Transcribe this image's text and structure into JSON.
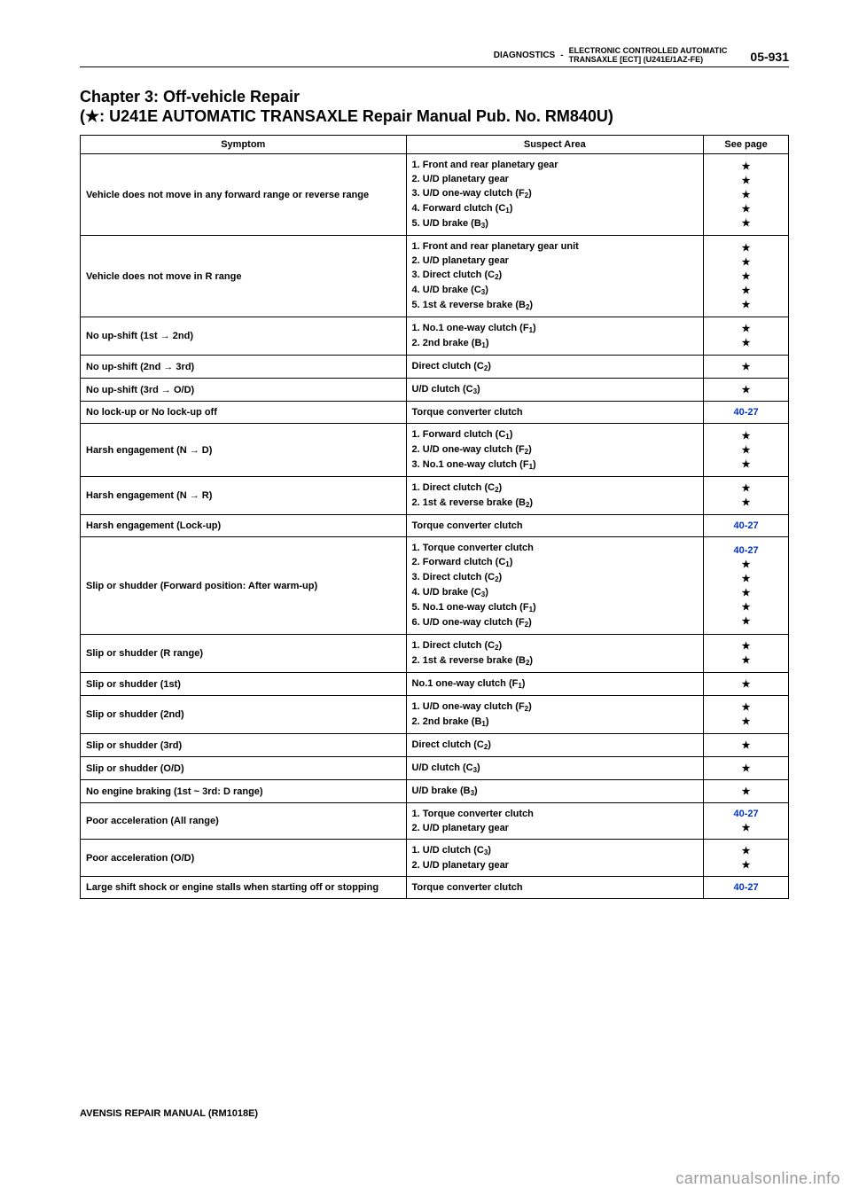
{
  "page_number": "05-931",
  "header_left": "DIAGNOSTICS",
  "header_sep": "-",
  "header_right_line1": "ELECTRONIC CONTROLLED AUTOMATIC",
  "header_right_line2": "TRANSAXLE [ECT] (U241E/1AZ-FE)",
  "chapter_line1": "Chapter 3: Off-vehicle Repair",
  "chapter_line2": "(★: U241E AUTOMATIC TRANSAXLE Repair Manual Pub. No. RM840U)",
  "columns": {
    "symptom": "Symptom",
    "suspect": "Suspect Area",
    "page": "See page"
  },
  "link_color": "#0033cc",
  "star_char": "★",
  "page_ref": "40-27",
  "rows": [
    {
      "symptom": "Vehicle does not move in any forward range or reverse range",
      "suspect": [
        "1.  Front and rear planetary gear",
        "2.  U/D planetary gear",
        "3.  U/D one-way clutch (F₂)",
        "4.  Forward clutch (C₁)",
        "5.  U/D brake (B₃)"
      ],
      "pages": [
        "star",
        "star",
        "star",
        "star",
        "star"
      ]
    },
    {
      "symptom": "Vehicle does not move in R range",
      "suspect": [
        "1.  Front and rear planetary gear unit",
        "2.  U/D planetary gear",
        "3.  Direct clutch (C₂)",
        "4.  U/D brake (C₃)",
        "5.  1st & reverse brake (B₂)"
      ],
      "pages": [
        "star",
        "star",
        "star",
        "star",
        "star"
      ]
    },
    {
      "symptom": "No up-shift (1st → 2nd)",
      "suspect": [
        "1.  No.1 one-way clutch (F₁)",
        "2.  2nd brake (B₁)"
      ],
      "pages": [
        "star",
        "star"
      ]
    },
    {
      "symptom": "No up-shift (2nd → 3rd)",
      "suspect": [
        "Direct clutch (C₂)"
      ],
      "pages": [
        "star"
      ]
    },
    {
      "symptom": "No up-shift (3rd → O/D)",
      "suspect": [
        "U/D clutch (C₃)"
      ],
      "pages": [
        "star"
      ]
    },
    {
      "symptom": "No lock-up or No lock-up off",
      "suspect": [
        "Torque converter clutch"
      ],
      "pages": [
        "link"
      ]
    },
    {
      "symptom": "Harsh engagement (N → D)",
      "suspect": [
        "1.  Forward clutch (C₁)",
        "2.  U/D one-way clutch (F₂)",
        "3.  No.1 one-way clutch (F₁)"
      ],
      "pages": [
        "star",
        "star",
        "star"
      ]
    },
    {
      "symptom": "Harsh engagement (N → R)",
      "suspect": [
        "1.  Direct  clutch (C₂)",
        "2.  1st & reverse brake (B₂)"
      ],
      "pages": [
        "star",
        "star"
      ]
    },
    {
      "symptom": "Harsh engagement (Lock-up)",
      "suspect": [
        "Torque converter clutch"
      ],
      "pages": [
        "link"
      ]
    },
    {
      "symptom": "Slip or shudder (Forward position: After warm-up)",
      "suspect": [
        "1.  Torque converter clutch",
        "2.  Forward clutch (C₁)",
        "3.  Direct clutch (C₂)",
        "4.  U/D brake (C₃)",
        "5.  No.1 one-way clutch (F₁)",
        "6.  U/D one-way clutch (F₂)"
      ],
      "pages": [
        "link",
        "star",
        "star",
        "star",
        "star",
        "star"
      ]
    },
    {
      "symptom": "Slip or shudder (R range)",
      "suspect": [
        "1.  Direct clutch (C₂)",
        "2.  1st & reverse brake (B₂)"
      ],
      "pages": [
        "star",
        "star"
      ]
    },
    {
      "symptom": "Slip or shudder (1st)",
      "suspect": [
        "No.1 one-way clutch (F₁)"
      ],
      "pages": [
        "star"
      ]
    },
    {
      "symptom": "Slip or shudder (2nd)",
      "suspect": [
        "1.  U/D one-way clutch (F₂)",
        "2.  2nd brake (B₁)"
      ],
      "pages": [
        "star",
        "star"
      ]
    },
    {
      "symptom": "Slip or shudder (3rd)",
      "suspect": [
        "Direct clutch (C₂)"
      ],
      "pages": [
        "star"
      ]
    },
    {
      "symptom": "Slip or shudder (O/D)",
      "suspect": [
        "U/D clutch (C₃)"
      ],
      "pages": [
        "star"
      ]
    },
    {
      "symptom": "No engine braking (1st ~ 3rd: D range)",
      "suspect": [
        "U/D brake (B₃)"
      ],
      "pages": [
        "star"
      ]
    },
    {
      "symptom": "Poor acceleration (All range)",
      "suspect": [
        "1.  Torque converter clutch",
        "2.  U/D planetary gear"
      ],
      "pages": [
        "link",
        "star"
      ]
    },
    {
      "symptom": "Poor acceleration (O/D)",
      "suspect": [
        "1.  U/D clutch (C₃)",
        "2.  U/D planetary gear"
      ],
      "pages": [
        "star",
        "star"
      ]
    },
    {
      "symptom": "Large shift shock or engine stalls when starting off or stopping",
      "suspect": [
        "Torque converter clutch"
      ],
      "pages": [
        "link"
      ]
    }
  ],
  "footer": "AVENSIS REPAIR MANUAL   (RM1018E)",
  "watermark": "carmanualsonline.info"
}
